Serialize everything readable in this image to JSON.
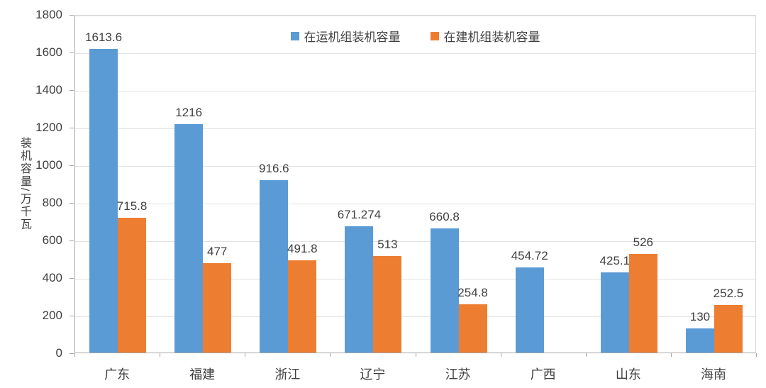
{
  "chart_data": {
    "type": "bar",
    "title": "",
    "xlabel": "",
    "ylabel": "装机容量/万千瓦",
    "ylim": [
      0,
      1800
    ],
    "ytick_step": 200,
    "grid": true,
    "legend_position": "top-center",
    "categories": [
      "广东",
      "福建",
      "浙江",
      "辽宁",
      "江苏",
      "广西",
      "山东",
      "海南"
    ],
    "series": [
      {
        "name": "在运机组装机容量",
        "color": "#5b9bd5",
        "values": [
          1613.6,
          1216,
          916.6,
          671.274,
          660.8,
          454.72,
          425.1,
          130
        ],
        "labels": [
          "1613.6",
          "1216",
          "916.6",
          "671.274",
          "660.8",
          "454.72",
          "425.1",
          "130"
        ]
      },
      {
        "name": "在建机组装机容量",
        "color": "#ed7d31",
        "values": [
          715.8,
          477,
          491.8,
          513,
          254.8,
          null,
          526,
          252.5
        ],
        "labels": [
          "715.8",
          "477",
          "491.8",
          "513",
          "254.8",
          "",
          "526",
          "252.5"
        ]
      }
    ]
  },
  "style": {
    "bar_color_series1": "#5b9bd5",
    "bar_color_series2": "#ed7d31",
    "gridline_color": "#e2e2e2",
    "axis_color": "#a6a6a6",
    "text_color": "#404040",
    "background": "#ffffff"
  }
}
